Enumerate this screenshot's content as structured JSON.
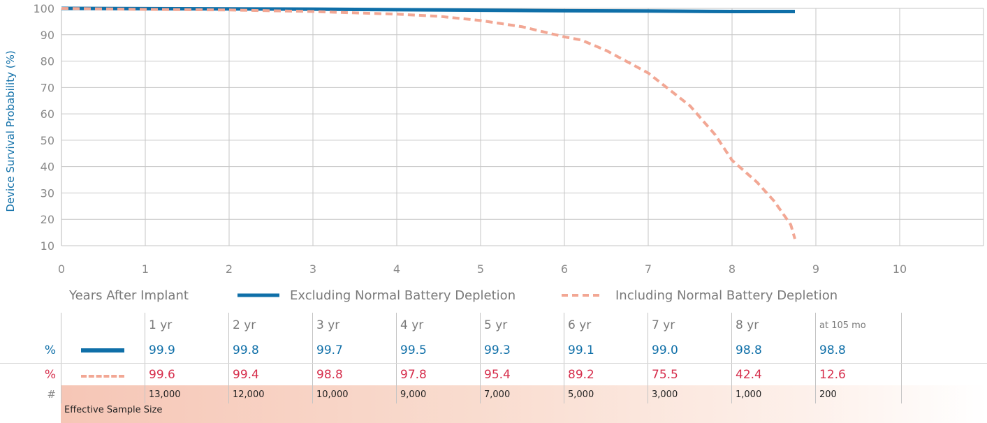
{
  "chart_data": {
    "type": "line",
    "ylabel": "Device Survival Probability (%)",
    "xlabel": "Years After Implant",
    "xlim": [
      0,
      11
    ],
    "ylim": [
      10,
      100
    ],
    "x_ticks": [
      0,
      1,
      2,
      3,
      4,
      5,
      6,
      7,
      8,
      9,
      10
    ],
    "y_ticks": [
      10,
      20,
      30,
      40,
      50,
      60,
      70,
      80,
      90,
      100
    ],
    "grid": true,
    "legend_position": "bottom",
    "series": [
      {
        "name": "Excluding Normal Battery Depletion",
        "style": "solid",
        "color": "#0f6fa8",
        "points": [
          [
            0,
            100
          ],
          [
            1,
            99.9
          ],
          [
            2,
            99.8
          ],
          [
            3,
            99.7
          ],
          [
            4,
            99.5
          ],
          [
            5,
            99.3
          ],
          [
            6,
            99.1
          ],
          [
            7,
            99.0
          ],
          [
            8,
            98.8
          ],
          [
            8.75,
            98.8
          ]
        ]
      },
      {
        "name": "Including Normal Battery Depletion",
        "style": "dashed",
        "color": "#f2a794",
        "points": [
          [
            0,
            100
          ],
          [
            1,
            99.6
          ],
          [
            2,
            99.4
          ],
          [
            3,
            98.8
          ],
          [
            4,
            97.8
          ],
          [
            4.5,
            97
          ],
          [
            5,
            95.4
          ],
          [
            5.5,
            93
          ],
          [
            6,
            89.2
          ],
          [
            6.2,
            88
          ],
          [
            6.5,
            84
          ],
          [
            7,
            75.5
          ],
          [
            7.3,
            68
          ],
          [
            7.5,
            63
          ],
          [
            7.8,
            52
          ],
          [
            8,
            42.4
          ],
          [
            8.3,
            34
          ],
          [
            8.5,
            27
          ],
          [
            8.7,
            18
          ],
          [
            8.75,
            12.6
          ]
        ]
      }
    ]
  },
  "table": {
    "headers": [
      "1 yr",
      "2 yr",
      "3 yr",
      "4 yr",
      "5 yr",
      "6 yr",
      "7 yr",
      "8 yr",
      "at 105 mo"
    ],
    "excluding": {
      "label": "%",
      "values": [
        "99.9",
        "99.8",
        "99.7",
        "99.5",
        "99.3",
        "99.1",
        "99.0",
        "98.8",
        "98.8"
      ]
    },
    "including": {
      "label": "%",
      "values": [
        "99.6",
        "99.4",
        "98.8",
        "97.8",
        "95.4",
        "89.2",
        "75.5",
        "42.4",
        "12.6"
      ]
    },
    "sample": {
      "label": "#",
      "values": [
        "13,000",
        "12,000",
        "10,000",
        "9,000",
        "7,000",
        "5,000",
        "3,000",
        "1,000",
        "200"
      ],
      "caption": "Effective Sample Size"
    }
  }
}
